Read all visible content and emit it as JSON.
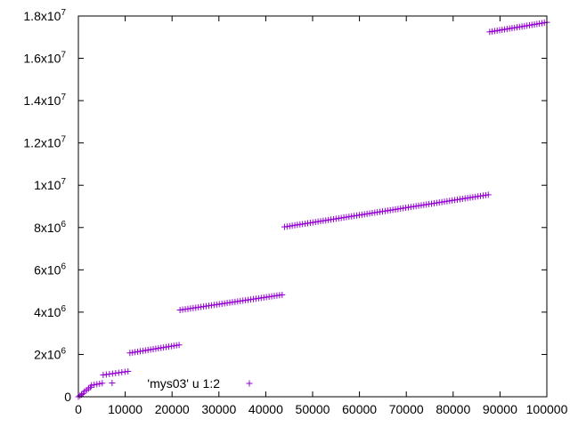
{
  "chart_data": {
    "type": "scatter",
    "title": "",
    "xlabel": "",
    "ylabel": "",
    "xlim": [
      0,
      100000
    ],
    "ylim": [
      0,
      18000000
    ],
    "grid": false,
    "legend_position": "bottom-left",
    "x_ticks": [
      {
        "value": 0,
        "label": "0"
      },
      {
        "value": 10000,
        "label": "10000"
      },
      {
        "value": 20000,
        "label": "20000"
      },
      {
        "value": 30000,
        "label": "30000"
      },
      {
        "value": 40000,
        "label": "40000"
      },
      {
        "value": 50000,
        "label": "50000"
      },
      {
        "value": 60000,
        "label": "60000"
      },
      {
        "value": 70000,
        "label": "70000"
      },
      {
        "value": 80000,
        "label": "80000"
      },
      {
        "value": 90000,
        "label": "90000"
      },
      {
        "value": 100000,
        "label": "100000"
      }
    ],
    "y_ticks": [
      {
        "value": 0,
        "mant": "0",
        "exp": ""
      },
      {
        "value": 2000000,
        "mant": "2x10",
        "exp": "6"
      },
      {
        "value": 4000000,
        "mant": "4x10",
        "exp": "6"
      },
      {
        "value": 6000000,
        "mant": "6x10",
        "exp": "6"
      },
      {
        "value": 8000000,
        "mant": "8x10",
        "exp": "6"
      },
      {
        "value": 10000000,
        "mant": "1x10",
        "exp": "7"
      },
      {
        "value": 12000000,
        "mant": "1.2x10",
        "exp": "7"
      },
      {
        "value": 14000000,
        "mant": "1.4x10",
        "exp": "7"
      },
      {
        "value": 16000000,
        "mant": "1.6x10",
        "exp": "7"
      },
      {
        "value": 18000000,
        "mant": "1.8x10",
        "exp": "7"
      }
    ],
    "series": [
      {
        "name": "'mys03' u 1:2",
        "color": "#9400d3",
        "marker": "plus",
        "segments": [
          {
            "x_start": 0,
            "x_end": 1000,
            "y_start": 0,
            "y_end": 150000,
            "count": 4
          },
          {
            "x_start": 1300,
            "x_end": 2600,
            "y_start": 250000,
            "y_end": 450000,
            "count": 4
          },
          {
            "x_start": 2800,
            "x_end": 5100,
            "y_start": 540000,
            "y_end": 640000,
            "count": 5
          },
          {
            "x_start": 5300,
            "x_end": 10600,
            "y_start": 1030000,
            "y_end": 1200000,
            "count": 9
          },
          {
            "x_start": 11000,
            "x_end": 21500,
            "y_start": 2070000,
            "y_end": 2450000,
            "count": 20
          },
          {
            "x_start": 21700,
            "x_end": 43500,
            "y_start": 4100000,
            "y_end": 4820000,
            "count": 40
          },
          {
            "x_start": 44000,
            "x_end": 87500,
            "y_start": 8030000,
            "y_end": 9550000,
            "count": 80
          },
          {
            "x_start": 87800,
            "x_end": 100000,
            "y_start": 17250000,
            "y_end": 17700000,
            "count": 24
          }
        ],
        "outliers": [
          {
            "x": 7200,
            "y": 650000
          }
        ]
      }
    ]
  }
}
